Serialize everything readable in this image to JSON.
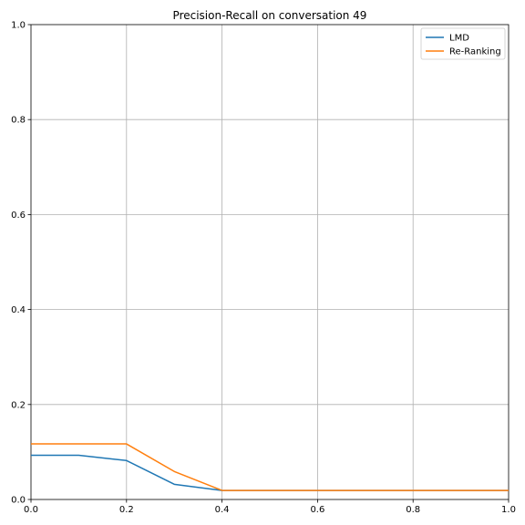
{
  "chart_data": {
    "type": "line",
    "title": "Precision-Recall on conversation 49",
    "xlabel": "",
    "ylabel": "",
    "xlim": [
      0.0,
      1.0
    ],
    "ylim": [
      0.0,
      1.0
    ],
    "x_ticks": [
      0.0,
      0.2,
      0.4,
      0.6,
      0.8,
      1.0
    ],
    "y_ticks": [
      0.0,
      0.2,
      0.4,
      0.6,
      0.8,
      1.0
    ],
    "x_tick_labels": [
      "0.0",
      "0.2",
      "0.4",
      "0.6",
      "0.8",
      "1.0"
    ],
    "y_tick_labels": [
      "0.0",
      "0.2",
      "0.4",
      "0.6",
      "0.8",
      "1.0"
    ],
    "grid": true,
    "legend_position": "top-right",
    "x": [
      0.0,
      0.1,
      0.2,
      0.3,
      0.4,
      0.5,
      0.6,
      0.7,
      0.8,
      0.9,
      1.0
    ],
    "series": [
      {
        "name": "LMD",
        "color": "#1f77b4",
        "values": [
          0.093,
          0.093,
          0.082,
          0.032,
          0.019,
          0.019,
          0.019,
          0.019,
          0.019,
          0.019,
          0.019
        ]
      },
      {
        "name": "Re-Ranking",
        "color": "#ff7f0e",
        "values": [
          0.117,
          0.117,
          0.117,
          0.059,
          0.019,
          0.019,
          0.019,
          0.019,
          0.019,
          0.019,
          0.019
        ]
      }
    ]
  }
}
